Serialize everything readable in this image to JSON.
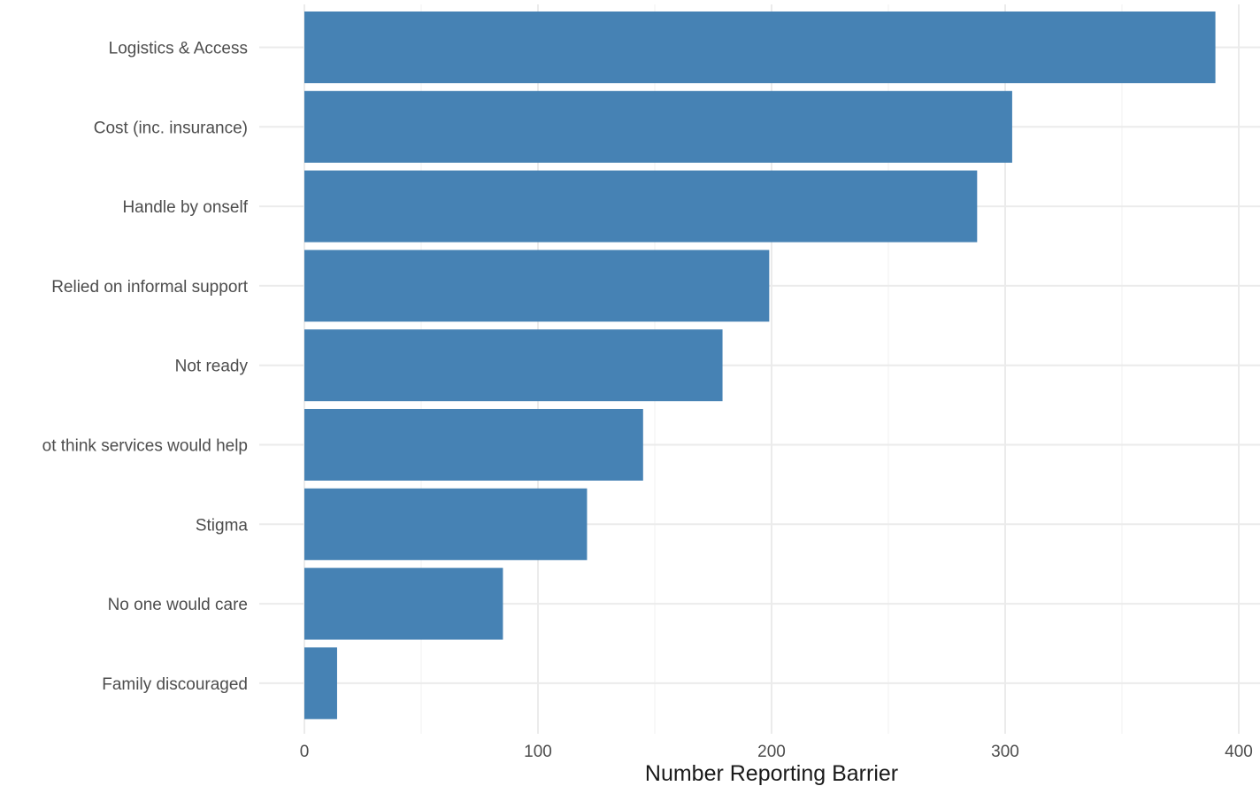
{
  "chart_data": {
    "type": "bar",
    "orientation": "horizontal",
    "title": "",
    "xlabel": "Number Reporting Barrier",
    "ylabel": "",
    "categories": [
      "Logistics & Access",
      "Cost (inc. insurance)",
      "Handle by onself",
      "Relied on informal support",
      "Not ready",
      "ot think services would help",
      "Stigma",
      "No one would care",
      "Family discouraged"
    ],
    "values": [
      390,
      303,
      288,
      199,
      179,
      145,
      121,
      85,
      14
    ],
    "xlim": [
      0,
      400
    ],
    "x_ticks": [
      0,
      100,
      200,
      300,
      400
    ],
    "x_tick_labels": [
      "0",
      "100",
      "200",
      "300",
      "400"
    ],
    "grid": true,
    "legend": "none",
    "bar_color": "#4682b4"
  }
}
